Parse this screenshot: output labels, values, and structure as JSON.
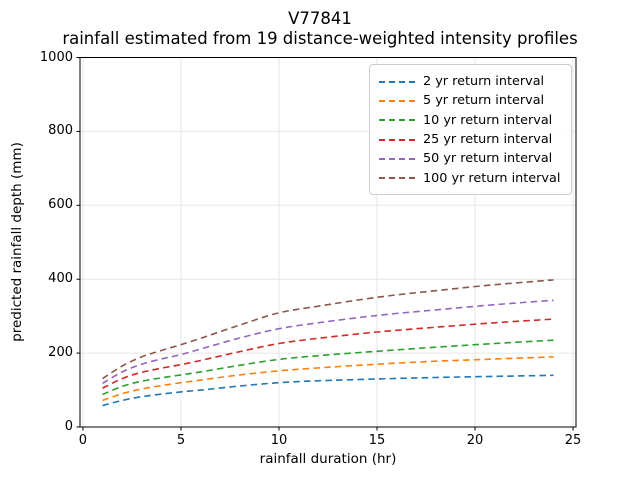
{
  "title": {
    "line1": "V77841",
    "line2": "rainfall estimated from 19 distance-weighted intensity profiles"
  },
  "axes": {
    "xlabel": "rainfall duration (hr)",
    "ylabel": "predicted rainfall depth (mm)",
    "x_ticks": [
      "0",
      "5",
      "10",
      "15",
      "20",
      "25"
    ],
    "y_ticks": [
      "0",
      "200",
      "400",
      "600",
      "800",
      "1000"
    ]
  },
  "colors": {
    "grid": "#e6e6e6",
    "spine": "#000000",
    "background": "#ffffff"
  },
  "chart_data": {
    "type": "line",
    "title": "V77841\nrainfall estimated from 19 distance-weighted intensity profiles",
    "xlabel": "rainfall duration (hr)",
    "ylabel": "predicted rainfall depth (mm)",
    "xlim": [
      0,
      25
    ],
    "ylim": [
      0,
      1000
    ],
    "x_tick_values": [
      0,
      5,
      10,
      15,
      20,
      25
    ],
    "y_tick_values": [
      0,
      200,
      400,
      600,
      800,
      1000
    ],
    "grid": true,
    "legend_position": "upper right",
    "line_style": "dashed",
    "x": [
      1,
      2,
      3,
      4,
      5,
      6,
      8,
      10,
      12,
      15,
      18,
      21,
      24
    ],
    "series": [
      {
        "name": "2 yr return interval",
        "color": "#1f77b4",
        "values": [
          58,
          72,
          82,
          89,
          95,
          100,
          111,
          120,
          125,
          130,
          134,
          137,
          140
        ]
      },
      {
        "name": "5 yr return interval",
        "color": "#ff7f0e",
        "values": [
          72,
          90,
          103,
          112,
          120,
          127,
          141,
          152,
          160,
          170,
          178,
          184,
          190
        ]
      },
      {
        "name": "10 yr return interval",
        "color": "#2ca02c",
        "values": [
          88,
          110,
          124,
          133,
          141,
          149,
          167,
          183,
          193,
          205,
          216,
          226,
          235
        ]
      },
      {
        "name": "25 yr return interval",
        "color": "#d62728",
        "values": [
          105,
          131,
          148,
          159,
          169,
          180,
          204,
          226,
          240,
          257,
          270,
          282,
          292
        ]
      },
      {
        "name": "50 yr return interval",
        "color": "#9467bd",
        "values": [
          118,
          149,
          170,
          184,
          196,
          211,
          241,
          266,
          282,
          302,
          317,
          331,
          343
        ]
      },
      {
        "name": "100 yr return interval",
        "color": "#8c564b",
        "values": [
          131,
          165,
          190,
          207,
          223,
          240,
          276,
          309,
          327,
          351,
          369,
          385,
          398
        ]
      }
    ]
  }
}
